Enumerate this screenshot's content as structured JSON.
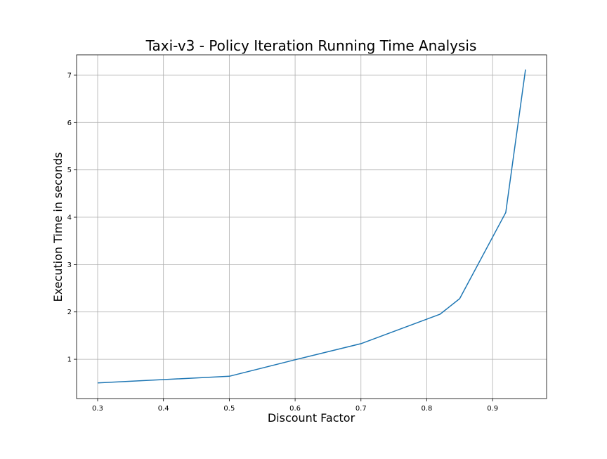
{
  "chart_data": {
    "type": "line",
    "title": "Taxi-v3 - Policy Iteration Running Time Analysis",
    "xlabel": "Discount Factor",
    "ylabel": "Execution Time in seconds",
    "xlim": [
      0.268,
      0.982
    ],
    "ylim": [
      0.17,
      7.43
    ],
    "xticks": [
      0.3,
      0.4,
      0.5,
      0.6,
      0.7,
      0.8,
      0.9
    ],
    "xtick_labels": [
      "0.3",
      "0.4",
      "0.5",
      "0.6",
      "0.7",
      "0.8",
      "0.9"
    ],
    "yticks": [
      1,
      2,
      3,
      4,
      5,
      6,
      7
    ],
    "ytick_labels": [
      "1",
      "2",
      "3",
      "4",
      "5",
      "6",
      "7"
    ],
    "grid": true,
    "series": [
      {
        "color": "#1f77b4",
        "x": [
          0.3,
          0.5,
          0.6,
          0.7,
          0.82,
          0.85,
          0.92,
          0.95
        ],
        "y": [
          0.5,
          0.64,
          0.99,
          1.33,
          1.95,
          2.28,
          4.1,
          7.12
        ]
      }
    ]
  }
}
